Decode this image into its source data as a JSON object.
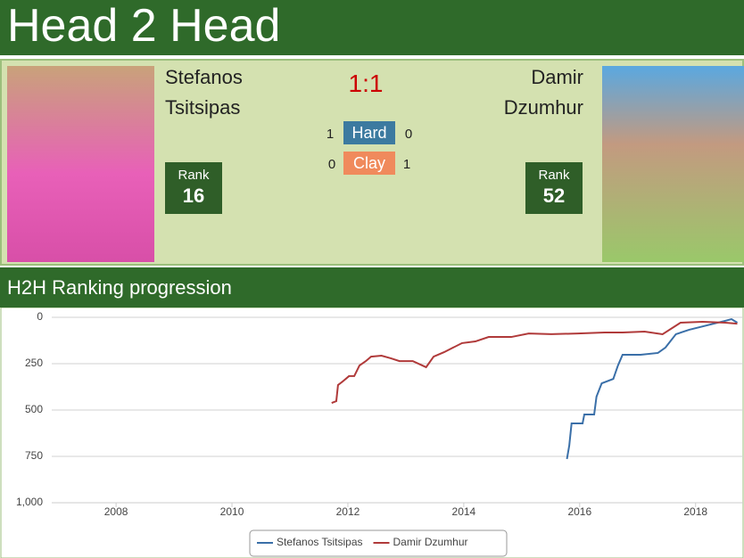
{
  "header": {
    "title": "Head 2 Head"
  },
  "players": [
    {
      "first": "Stefanos",
      "last": "Tsitsipas",
      "rank_label": "Rank",
      "rank": "16"
    },
    {
      "first": "Damir",
      "last": "Dzumhur",
      "rank_label": "Rank",
      "rank": "52"
    }
  ],
  "score": "1:1",
  "surfaces": [
    {
      "name": "Hard",
      "p1": "1",
      "p2": "0",
      "color": "#3c7aa0"
    },
    {
      "name": "Clay",
      "p1": "0",
      "p2": "1",
      "color": "#f08a5c"
    }
  ],
  "section": {
    "title": "H2H Ranking progression"
  },
  "chart_data": {
    "type": "line",
    "xlim": [
      2006.89,
      2018.82
    ],
    "xticks": [
      2008,
      2010,
      2012,
      2014,
      2016,
      2018
    ],
    "ylim": [
      0,
      1000
    ],
    "y_inverted": true,
    "yticks": [
      0,
      250,
      500,
      750,
      {
        "value": 1000,
        "label": "1,000"
      }
    ],
    "grid": true,
    "legend": "bottom",
    "series": [
      {
        "name": "Stefanos Tsitsipas",
        "color": "#3a6fa8",
        "x": [
          2015.78,
          2015.82,
          2015.86,
          2016.05,
          2016.08,
          2016.25,
          2016.29,
          2016.38,
          2016.58,
          2016.66,
          2016.74,
          2017.05,
          2017.35,
          2017.48,
          2017.66,
          2017.89,
          2018.2,
          2018.51,
          2018.62,
          2018.72
        ],
        "values": [
          764,
          692,
          572,
          572,
          524,
          524,
          428,
          356,
          332,
          260,
          202,
          202,
          192,
          163,
          91,
          67,
          43,
          19,
          10,
          29
        ]
      },
      {
        "name": "Damir Dzumhur",
        "color": "#b03a3a",
        "x": [
          2011.72,
          2011.8,
          2011.83,
          2011.91,
          2012.02,
          2012.11,
          2012.2,
          2012.31,
          2012.4,
          2012.58,
          2012.74,
          2012.89,
          2013.12,
          2013.35,
          2013.48,
          2013.66,
          2013.97,
          2014.2,
          2014.43,
          2014.82,
          2015.12,
          2015.51,
          2015.97,
          2016.43,
          2016.74,
          2017.12,
          2017.43,
          2017.74,
          2018.12,
          2018.51,
          2018.72
        ],
        "values": [
          462,
          452,
          365,
          346,
          317,
          317,
          260,
          236,
          212,
          207,
          221,
          236,
          236,
          269,
          212,
          188,
          139,
          130,
          106,
          106,
          87,
          91,
          87,
          82,
          82,
          77,
          91,
          29,
          24,
          29,
          34
        ]
      }
    ]
  }
}
